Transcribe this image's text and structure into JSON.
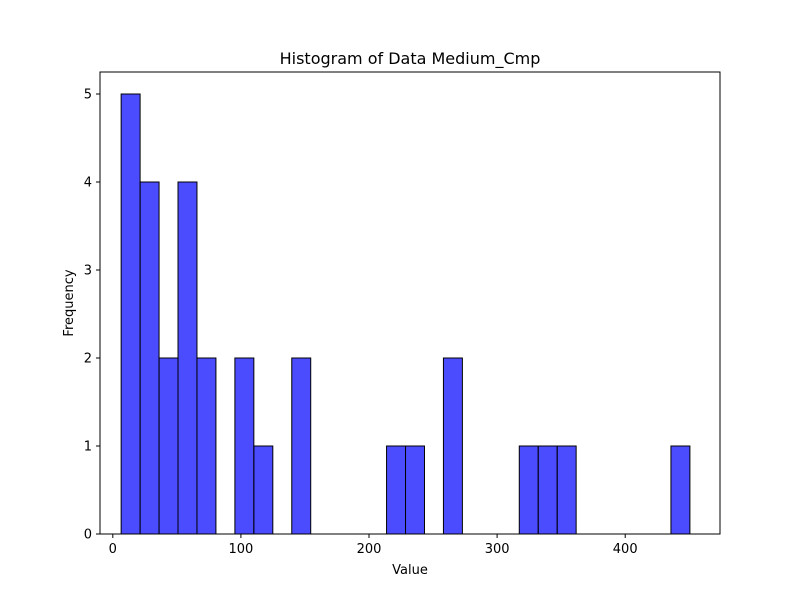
{
  "chart_data": {
    "type": "bar",
    "title": "Histogram of Data Medium_Cmp",
    "xlabel": "Value",
    "ylabel": "Frequency",
    "xlim": [
      -10,
      474
    ],
    "ylim": [
      0,
      5.25
    ],
    "xticks": [
      0,
      100,
      200,
      300,
      400
    ],
    "yticks": [
      0,
      1,
      2,
      3,
      4,
      5
    ],
    "grid": false,
    "bar_color": "#0000ff",
    "bar_opacity": 0.7,
    "edge_color": "#000000",
    "bin_width": 14.8,
    "bins": [
      {
        "start": 6.5,
        "end": 21.3,
        "count": 5
      },
      {
        "start": 21.3,
        "end": 36.1,
        "count": 4
      },
      {
        "start": 36.1,
        "end": 50.9,
        "count": 2
      },
      {
        "start": 50.9,
        "end": 65.7,
        "count": 4
      },
      {
        "start": 65.7,
        "end": 80.5,
        "count": 2
      },
      {
        "start": 80.5,
        "end": 95.3,
        "count": 0
      },
      {
        "start": 95.3,
        "end": 110.1,
        "count": 2
      },
      {
        "start": 110.1,
        "end": 124.9,
        "count": 1
      },
      {
        "start": 124.9,
        "end": 139.7,
        "count": 0
      },
      {
        "start": 139.7,
        "end": 154.5,
        "count": 2
      },
      {
        "start": 154.5,
        "end": 169.3,
        "count": 0
      },
      {
        "start": 169.3,
        "end": 184.1,
        "count": 0
      },
      {
        "start": 184.1,
        "end": 198.9,
        "count": 0
      },
      {
        "start": 198.9,
        "end": 213.7,
        "count": 0
      },
      {
        "start": 213.7,
        "end": 228.5,
        "count": 1
      },
      {
        "start": 228.5,
        "end": 243.3,
        "count": 1
      },
      {
        "start": 243.3,
        "end": 258.1,
        "count": 0
      },
      {
        "start": 258.1,
        "end": 272.9,
        "count": 2
      },
      {
        "start": 272.9,
        "end": 287.7,
        "count": 0
      },
      {
        "start": 287.7,
        "end": 302.5,
        "count": 0
      },
      {
        "start": 302.5,
        "end": 317.3,
        "count": 0
      },
      {
        "start": 317.3,
        "end": 332.1,
        "count": 1
      },
      {
        "start": 332.1,
        "end": 346.9,
        "count": 1
      },
      {
        "start": 346.9,
        "end": 361.7,
        "count": 1
      },
      {
        "start": 361.7,
        "end": 376.5,
        "count": 0
      },
      {
        "start": 376.5,
        "end": 391.3,
        "count": 0
      },
      {
        "start": 391.3,
        "end": 406.1,
        "count": 0
      },
      {
        "start": 406.1,
        "end": 420.9,
        "count": 0
      },
      {
        "start": 420.9,
        "end": 435.7,
        "count": 0
      },
      {
        "start": 435.7,
        "end": 450.5,
        "count": 1
      }
    ]
  }
}
